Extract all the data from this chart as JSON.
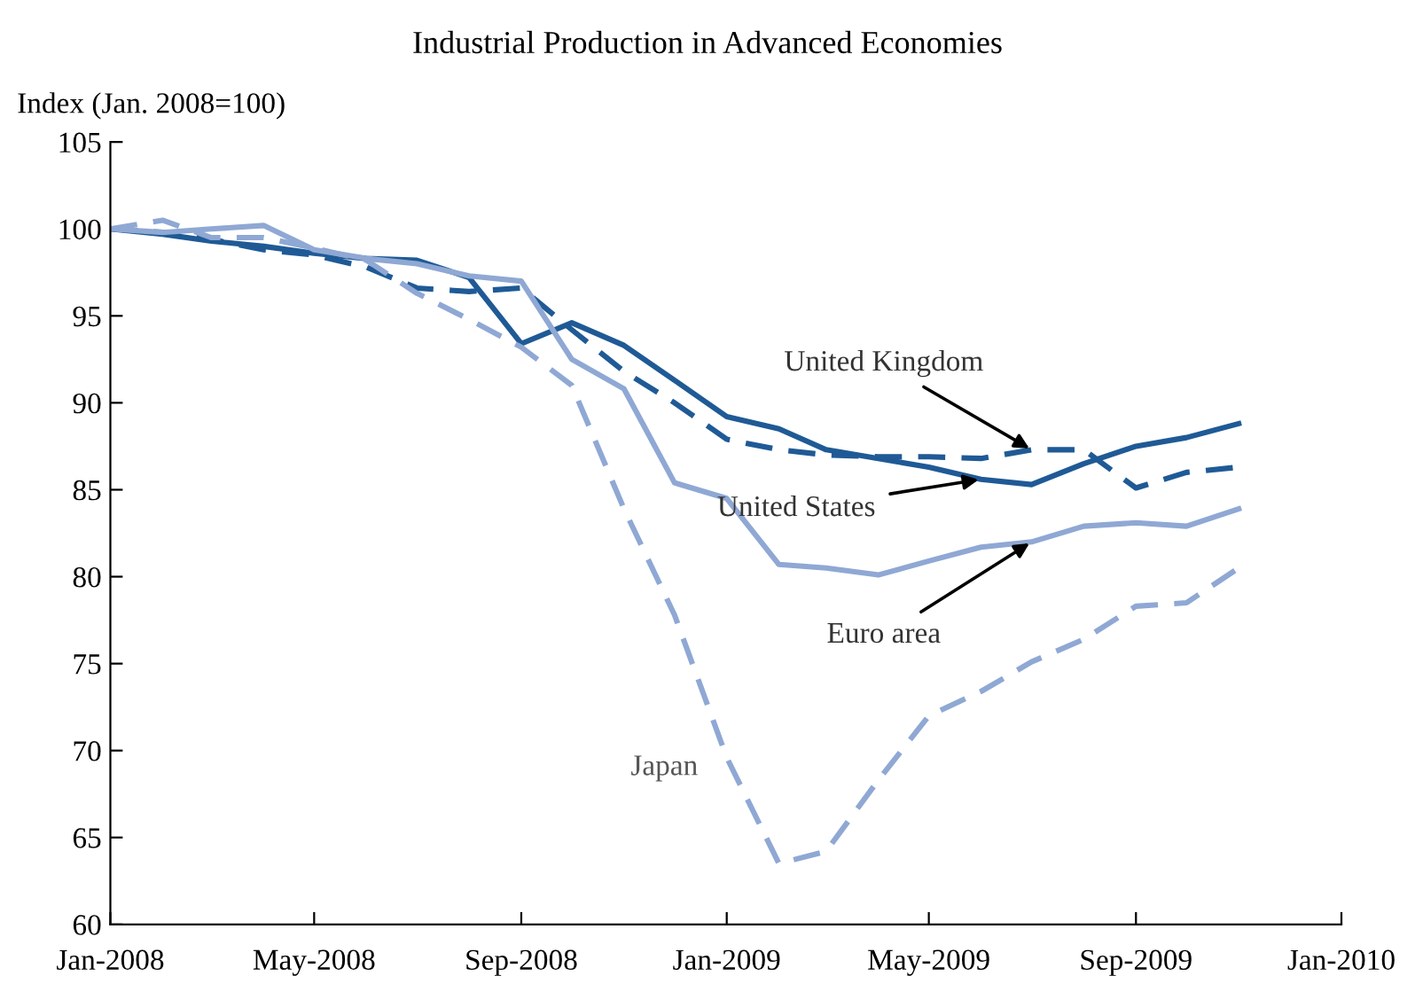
{
  "chart_data": {
    "type": "line",
    "title": "Industrial Production in Advanced Economies",
    "ylabel": "Index (Jan. 2008=100)",
    "x": [
      "2008-01",
      "2008-02",
      "2008-03",
      "2008-04",
      "2008-05",
      "2008-06",
      "2008-07",
      "2008-08",
      "2008-09",
      "2008-10",
      "2008-11",
      "2008-12",
      "2009-01",
      "2009-02",
      "2009-03",
      "2009-04",
      "2009-05",
      "2009-06",
      "2009-07",
      "2009-08",
      "2009-09",
      "2009-10",
      "2009-11"
    ],
    "series": [
      {
        "color": "#1f5a96",
        "line_style": "solid",
        "values": [
          100,
          99.7,
          99.3,
          99.0,
          98.6,
          98.3,
          98.2,
          97.2,
          93.4,
          94.6,
          93.3,
          91.3,
          89.2,
          88.5,
          87.3,
          86.8,
          86.3,
          85.6,
          85.3,
          86.5,
          87.5,
          88.0,
          88.8
        ]
      },
      {
        "color": "#1f5a96",
        "line_style": "dashed",
        "values": [
          100,
          99.8,
          99.4,
          98.8,
          98.5,
          97.8,
          96.6,
          96.4,
          96.6,
          94.2,
          91.8,
          90.0,
          87.9,
          87.3,
          87.0,
          86.9,
          86.9,
          86.8,
          87.3,
          87.3,
          85.1,
          86.0,
          86.3
        ]
      },
      {
        "color": "#8fa8d4",
        "line_style": "solid",
        "values": [
          100,
          99.8,
          100.0,
          100.2,
          98.8,
          98.3,
          98.0,
          97.3,
          97.0,
          92.5,
          90.8,
          85.4,
          84.5,
          80.7,
          80.5,
          80.1,
          80.9,
          81.7,
          82.0,
          82.9,
          83.1,
          82.9,
          83.9
        ]
      },
      {
        "color": "#8fa8d4",
        "line_style": "dashed",
        "values": [
          100,
          100.5,
          99.5,
          99.5,
          98.9,
          98.2,
          96.3,
          94.8,
          93.2,
          91.0,
          83.9,
          77.8,
          69.6,
          63.5,
          64.2,
          68.3,
          72.0,
          73.4,
          75.1,
          76.4,
          78.3,
          78.5,
          80.5
        ]
      }
    ],
    "annotations": [
      {
        "text": "United Kingdom",
        "x": "2009-07",
        "y": 87.3
      },
      {
        "text": "United States",
        "x": "2009-06",
        "y": 85.6
      },
      {
        "text": "Euro area",
        "x": "2009-07",
        "y": 82.0
      },
      "Japan"
    ],
    "xlim": [
      "2008-01",
      "2010-01"
    ],
    "xticks": [
      {
        "value": "2008-01",
        "label": "Jan-2008"
      },
      {
        "value": "2008-05",
        "label": "May-2008"
      },
      {
        "value": "2008-09",
        "label": "Sep-2008"
      },
      {
        "value": "2009-01",
        "label": "Jan-2009"
      },
      {
        "value": "2009-05",
        "label": "May-2009"
      },
      {
        "value": "2009-09",
        "label": "Sep-2009"
      },
      {
        "value": "2010-01",
        "label": "Jan-2010"
      }
    ],
    "ylim": [
      60,
      105
    ],
    "yticks": [
      60,
      65,
      70,
      75,
      80,
      85,
      90,
      95,
      100,
      105
    ],
    "grid": false,
    "legend": false,
    "marker": "none"
  }
}
